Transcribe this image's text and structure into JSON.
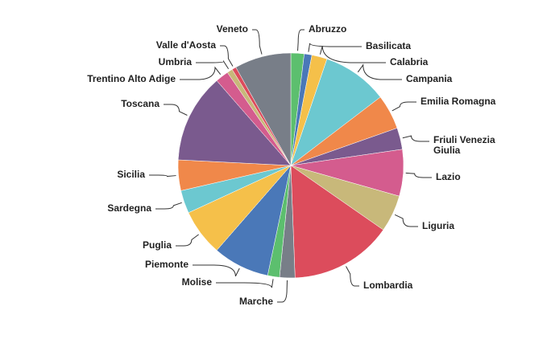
{
  "chart_data": {
    "type": "pie",
    "categories": [
      "Abruzzo",
      "Basilicata",
      "Calabria",
      "Campania",
      "Emilia Romagna",
      "Friuli Venezia Giulia",
      "Lazio",
      "Liguria",
      "Lombardia",
      "Marche",
      "Molise",
      "Piemonte",
      "Puglia",
      "Sardegna",
      "Sicilia",
      "Toscana",
      "Trentino Alto Adige",
      "Umbria",
      "Valle d'Aosta",
      "Veneto"
    ],
    "values": [
      1.9,
      1.1,
      2.2,
      9.4,
      5.0,
      3.1,
      6.7,
      5.3,
      14.7,
      2.2,
      1.7,
      8.1,
      6.7,
      3.3,
      4.4,
      12.8,
      1.9,
      0.8,
      0.6,
      8.1
    ],
    "colors": [
      "#5cbf6e",
      "#4a78b8",
      "#f5c04a",
      "#6cc8d0",
      "#f0884a",
      "#7a5a8e",
      "#d45c8e",
      "#c8b87a",
      "#dc4c5c",
      "#787e88",
      "#5cbf6e",
      "#4a78b8",
      "#f5c04a",
      "#6cc8d0",
      "#f0884a",
      "#7a5a8e",
      "#d45c8e",
      "#c8b87a",
      "#dc4c5c",
      "#787e88"
    ]
  }
}
